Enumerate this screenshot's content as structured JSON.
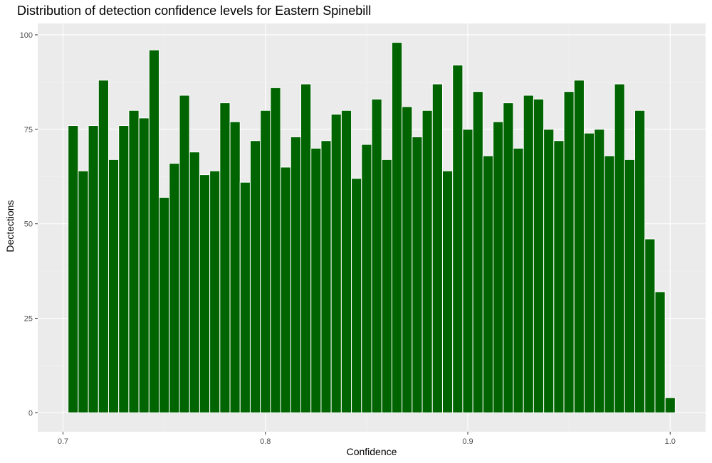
{
  "chart_data": {
    "type": "bar",
    "title": "Distribution of detection confidence levels for Eastern Spinebill",
    "xlabel": "Confidence",
    "ylabel": "Dectections",
    "bin_width": 0.005,
    "x": [
      0.705,
      0.71,
      0.715,
      0.72,
      0.725,
      0.73,
      0.735,
      0.74,
      0.745,
      0.75,
      0.755,
      0.76,
      0.765,
      0.77,
      0.775,
      0.78,
      0.785,
      0.79,
      0.795,
      0.8,
      0.805,
      0.81,
      0.815,
      0.82,
      0.825,
      0.83,
      0.835,
      0.84,
      0.845,
      0.85,
      0.855,
      0.86,
      0.865,
      0.87,
      0.875,
      0.88,
      0.885,
      0.89,
      0.895,
      0.9,
      0.905,
      0.91,
      0.915,
      0.92,
      0.925,
      0.93,
      0.935,
      0.94,
      0.945,
      0.95,
      0.955,
      0.96,
      0.965,
      0.97,
      0.975,
      0.98,
      0.985,
      0.99,
      0.995,
      1.0
    ],
    "values": [
      76,
      64,
      76,
      88,
      67,
      76,
      80,
      78,
      96,
      57,
      66,
      84,
      69,
      63,
      64,
      82,
      77,
      61,
      72,
      80,
      86,
      65,
      73,
      87,
      70,
      72,
      79,
      80,
      62,
      71,
      83,
      67,
      98,
      81,
      73,
      80,
      87,
      64,
      92,
      75,
      85,
      68,
      77,
      82,
      70,
      84,
      83,
      75,
      72,
      85,
      88,
      74,
      75,
      68,
      87,
      67,
      80,
      46,
      32,
      4
    ],
    "xlim": [
      0.6875,
      1.0175
    ],
    "ylim": [
      -5,
      103
    ],
    "x_ticks": [
      0.7,
      0.8,
      0.9,
      1.0
    ],
    "x_tick_labels": [
      "0.7",
      "0.8",
      "0.9",
      "1.0"
    ],
    "y_ticks": [
      0,
      25,
      50,
      75,
      100
    ],
    "y_tick_labels": [
      "0",
      "25",
      "50",
      "75",
      "100"
    ],
    "grid": true,
    "legend": "none",
    "colors": {
      "bar_fill": "#006400",
      "bar_outline": "#ffffff",
      "panel_background": "#ebebeb",
      "grid_major": "#ffffff",
      "grid_minor": "#f5f5f5",
      "tick_text": "#4d4d4d"
    }
  }
}
